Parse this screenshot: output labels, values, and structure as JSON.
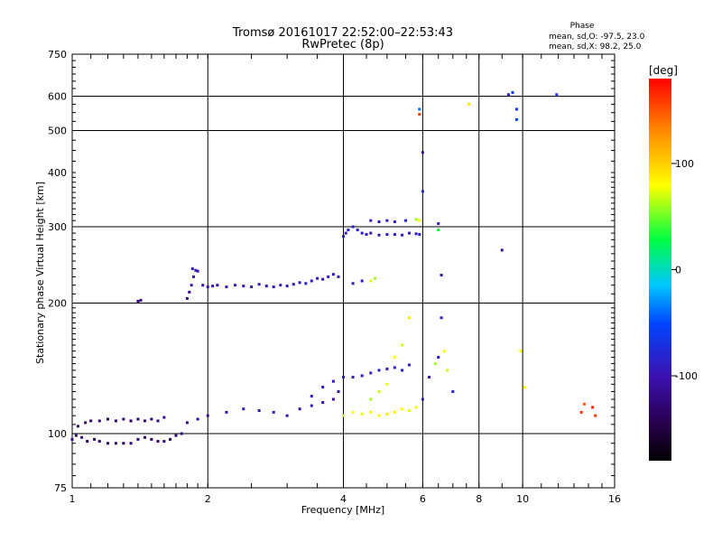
{
  "header": {
    "title_line1": "Tromsø 20161017 22:52:00–22:53:43",
    "title_line2": "RwPretec (8p)"
  },
  "phase_box": {
    "title": "Phase",
    "line_o": "mean, sd,O: -97.5, 23.0",
    "line_x": "mean, sd,X:  98.2, 25.0"
  },
  "chart_data": {
    "type": "scatter",
    "xlabel": "Frequency [MHz]",
    "ylabel": "Stationary phase Virtual Height [km]",
    "xscale": "log",
    "yscale": "log",
    "xlim": [
      1,
      16
    ],
    "ylim": [
      75,
      750
    ],
    "x_ticks": [
      1,
      2,
      4,
      6,
      8,
      10,
      16
    ],
    "y_ticks": [
      75,
      100,
      200,
      300,
      400,
      500,
      600,
      750
    ],
    "x_grid": [
      2,
      4,
      6,
      8,
      10
    ],
    "y_grid": [
      100,
      200,
      300,
      500,
      600
    ],
    "grid": true,
    "colorbar": {
      "label": "[deg]",
      "range": [
        -180,
        180
      ],
      "ticks": [
        100,
        0,
        -100
      ]
    },
    "points": [
      [
        1.0,
        97,
        -120
      ],
      [
        1.02,
        99,
        -130
      ],
      [
        1.05,
        98,
        -125
      ],
      [
        1.08,
        96,
        -140
      ],
      [
        1.12,
        97,
        -135
      ],
      [
        1.15,
        96,
        -130
      ],
      [
        1.2,
        95,
        -138
      ],
      [
        1.25,
        95,
        -135
      ],
      [
        1.3,
        95,
        -140
      ],
      [
        1.35,
        95,
        -130
      ],
      [
        1.4,
        97,
        -125
      ],
      [
        1.45,
        98,
        -135
      ],
      [
        1.5,
        97,
        -140
      ],
      [
        1.55,
        96,
        -130
      ],
      [
        1.6,
        96,
        -125
      ],
      [
        1.65,
        97,
        -135
      ],
      [
        1.7,
        99,
        -130
      ],
      [
        1.75,
        100,
        -120
      ],
      [
        1.03,
        104,
        -130
      ],
      [
        1.07,
        106,
        -140
      ],
      [
        1.1,
        107,
        -125
      ],
      [
        1.15,
        107,
        -120
      ],
      [
        1.2,
        108,
        -135
      ],
      [
        1.25,
        107,
        -130
      ],
      [
        1.3,
        108,
        -125
      ],
      [
        1.35,
        107,
        -140
      ],
      [
        1.4,
        108,
        -130
      ],
      [
        1.45,
        107,
        -125
      ],
      [
        1.5,
        108,
        -135
      ],
      [
        1.55,
        107,
        -120
      ],
      [
        1.6,
        109,
        -115
      ],
      [
        1.4,
        202,
        -130
      ],
      [
        1.42,
        203,
        -125
      ],
      [
        1.8,
        205,
        -120
      ],
      [
        1.82,
        212,
        -115
      ],
      [
        1.84,
        220,
        -105
      ],
      [
        1.86,
        230,
        -100
      ],
      [
        1.88,
        238,
        -95
      ],
      [
        1.85,
        240,
        -90
      ],
      [
        1.9,
        237,
        -100
      ],
      [
        1.95,
        220,
        -110
      ],
      [
        2.0,
        218,
        -100
      ],
      [
        2.05,
        219,
        -95
      ],
      [
        2.1,
        220,
        -105
      ],
      [
        2.2,
        218,
        -100
      ],
      [
        2.3,
        220,
        -90
      ],
      [
        2.4,
        219,
        -100
      ],
      [
        2.5,
        218,
        -95
      ],
      [
        2.6,
        221,
        -100
      ],
      [
        2.7,
        219,
        -105
      ],
      [
        2.8,
        218,
        -95
      ],
      [
        2.9,
        220,
        -100
      ],
      [
        3.0,
        219,
        -90
      ],
      [
        3.1,
        221,
        -95
      ],
      [
        3.2,
        223,
        -100
      ],
      [
        3.3,
        222,
        -85
      ],
      [
        3.4,
        225,
        -95
      ],
      [
        3.5,
        228,
        -90
      ],
      [
        3.6,
        227,
        -100
      ],
      [
        3.7,
        230,
        -85
      ],
      [
        3.8,
        233,
        -100
      ],
      [
        3.9,
        230,
        -95
      ],
      [
        4.0,
        285,
        -90
      ],
      [
        4.05,
        290,
        -100
      ],
      [
        4.1,
        295,
        -85
      ],
      [
        4.2,
        300,
        -90
      ],
      [
        4.3,
        295,
        -80
      ],
      [
        4.4,
        290,
        -95
      ],
      [
        4.5,
        288,
        -90
      ],
      [
        4.6,
        290,
        -100
      ],
      [
        4.8,
        287,
        -95
      ],
      [
        5.0,
        288,
        -90
      ],
      [
        5.2,
        288,
        -85
      ],
      [
        5.4,
        287,
        -95
      ],
      [
        5.6,
        290,
        -100
      ],
      [
        5.8,
        289,
        -90
      ],
      [
        5.9,
        288,
        -85
      ],
      [
        4.2,
        222,
        -90
      ],
      [
        4.4,
        225,
        -95
      ],
      [
        4.6,
        225,
        70
      ],
      [
        4.7,
        228,
        60
      ],
      [
        4.6,
        310,
        -100
      ],
      [
        4.8,
        308,
        -95
      ],
      [
        5.0,
        310,
        -90
      ],
      [
        5.2,
        308,
        -95
      ],
      [
        5.5,
        310,
        -85
      ],
      [
        5.8,
        312,
        60
      ],
      [
        5.9,
        310,
        80
      ],
      [
        1.8,
        106,
        -120
      ],
      [
        1.9,
        108,
        -115
      ],
      [
        2.0,
        110,
        -110
      ],
      [
        2.2,
        112,
        -105
      ],
      [
        2.4,
        114,
        -95
      ],
      [
        2.6,
        113,
        -100
      ],
      [
        2.8,
        112,
        -95
      ],
      [
        3.0,
        110,
        -100
      ],
      [
        3.2,
        114,
        -110
      ],
      [
        3.4,
        116,
        -100
      ],
      [
        3.6,
        118,
        -105
      ],
      [
        3.8,
        120,
        -110
      ],
      [
        3.9,
        125,
        -100
      ],
      [
        3.4,
        122,
        -95
      ],
      [
        3.6,
        128,
        -90
      ],
      [
        3.8,
        132,
        -100
      ],
      [
        4.0,
        135,
        -85
      ],
      [
        4.2,
        135,
        -90
      ],
      [
        4.4,
        136,
        -95
      ],
      [
        4.6,
        138,
        -90
      ],
      [
        4.8,
        140,
        -85
      ],
      [
        5.0,
        141,
        -95
      ],
      [
        5.2,
        142,
        -90
      ],
      [
        5.4,
        140,
        -85
      ],
      [
        5.6,
        144,
        -95
      ],
      [
        4.0,
        110,
        70
      ],
      [
        4.2,
        112,
        80
      ],
      [
        4.4,
        111,
        75
      ],
      [
        4.6,
        112,
        85
      ],
      [
        4.8,
        110,
        80
      ],
      [
        5.0,
        111,
        90
      ],
      [
        5.2,
        112,
        85
      ],
      [
        5.4,
        114,
        80
      ],
      [
        5.6,
        113,
        75
      ],
      [
        5.8,
        115,
        85
      ],
      [
        4.6,
        120,
        60
      ],
      [
        4.8,
        125,
        70
      ],
      [
        5.0,
        130,
        75
      ],
      [
        5.2,
        150,
        80
      ],
      [
        5.4,
        160,
        70
      ],
      [
        5.6,
        185,
        90
      ],
      [
        6.0,
        120,
        -95
      ],
      [
        6.2,
        135,
        -100
      ],
      [
        6.4,
        145,
        60
      ],
      [
        6.5,
        150,
        -90
      ],
      [
        6.8,
        140,
        70
      ],
      [
        7.0,
        125,
        -85
      ],
      [
        6.6,
        185,
        -100
      ],
      [
        6.7,
        155,
        80
      ],
      [
        6.0,
        362,
        -80
      ],
      [
        6.0,
        445,
        -110
      ],
      [
        5.9,
        545,
        160
      ],
      [
        5.9,
        560,
        -40
      ],
      [
        6.5,
        305,
        -100
      ],
      [
        6.5,
        295,
        30
      ],
      [
        6.6,
        232,
        -110
      ],
      [
        7.6,
        575,
        90
      ],
      [
        9.0,
        265,
        -110
      ],
      [
        9.3,
        605,
        -95
      ],
      [
        9.5,
        612,
        -60
      ],
      [
        9.7,
        560,
        -65
      ],
      [
        9.7,
        530,
        -50
      ],
      [
        11.9,
        605,
        -70
      ],
      [
        10.1,
        128,
        80
      ],
      [
        9.9,
        155,
        80
      ],
      [
        13.5,
        112,
        160
      ],
      [
        13.7,
        117,
        150
      ],
      [
        14.3,
        115,
        170
      ],
      [
        14.5,
        110,
        160
      ]
    ]
  }
}
